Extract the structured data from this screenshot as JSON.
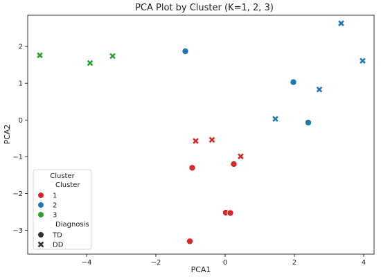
{
  "chart_data": {
    "type": "scatter",
    "title": "PCA Plot by Cluster (K=1, 2, 3)",
    "xlabel": "PCA1",
    "ylabel": "PCA2",
    "xlim": [
      -5.7,
      4.3
    ],
    "ylim": [
      -3.65,
      2.85
    ],
    "xticks": [
      -4,
      -2,
      0,
      2,
      4
    ],
    "yticks": [
      -3,
      -2,
      -1,
      0,
      1,
      2
    ],
    "xtick_labels": [
      "−4",
      "−2",
      "0",
      "2",
      "4"
    ],
    "ytick_labels": [
      "−3",
      "−2",
      "−1",
      "0",
      "1",
      "2"
    ],
    "grid": false,
    "legend_placement": "lower-left",
    "cluster_colors": {
      "1": "#d62728",
      "2": "#1f77b4",
      "3": "#2ca02c"
    },
    "legend": {
      "title": "Cluster",
      "cluster_heading": "Cluster",
      "clusters": [
        "1",
        "2",
        "3"
      ],
      "diagnosis_heading": "Diagnosis",
      "diagnoses": [
        {
          "label": "TD",
          "marker": "circle"
        },
        {
          "label": "DD",
          "marker": "x"
        }
      ]
    },
    "points": [
      {
        "x": -5.35,
        "y": 1.76,
        "cluster": "3",
        "diagnosis": "DD"
      },
      {
        "x": -3.9,
        "y": 1.55,
        "cluster": "3",
        "diagnosis": "DD"
      },
      {
        "x": -3.25,
        "y": 1.74,
        "cluster": "3",
        "diagnosis": "DD"
      },
      {
        "x": -1.15,
        "y": 1.87,
        "cluster": "2",
        "diagnosis": "TD"
      },
      {
        "x": 1.97,
        "y": 1.03,
        "cluster": "2",
        "diagnosis": "TD"
      },
      {
        "x": 2.4,
        "y": -0.07,
        "cluster": "2",
        "diagnosis": "TD"
      },
      {
        "x": 1.45,
        "y": 0.03,
        "cluster": "2",
        "diagnosis": "DD"
      },
      {
        "x": 2.72,
        "y": 0.83,
        "cluster": "2",
        "diagnosis": "DD"
      },
      {
        "x": 3.35,
        "y": 2.63,
        "cluster": "2",
        "diagnosis": "DD"
      },
      {
        "x": 3.97,
        "y": 1.61,
        "cluster": "2",
        "diagnosis": "DD"
      },
      {
        "x": -0.85,
        "y": -0.57,
        "cluster": "1",
        "diagnosis": "DD"
      },
      {
        "x": -0.38,
        "y": -0.54,
        "cluster": "1",
        "diagnosis": "DD"
      },
      {
        "x": 0.45,
        "y": -0.99,
        "cluster": "1",
        "diagnosis": "DD"
      },
      {
        "x": 0.25,
        "y": -1.2,
        "cluster": "1",
        "diagnosis": "TD"
      },
      {
        "x": -0.95,
        "y": -1.3,
        "cluster": "1",
        "diagnosis": "TD"
      },
      {
        "x": 0.02,
        "y": -2.52,
        "cluster": "1",
        "diagnosis": "TD"
      },
      {
        "x": 0.15,
        "y": -2.53,
        "cluster": "1",
        "diagnosis": "TD"
      },
      {
        "x": -1.02,
        "y": -3.3,
        "cluster": "1",
        "diagnosis": "TD"
      }
    ]
  }
}
